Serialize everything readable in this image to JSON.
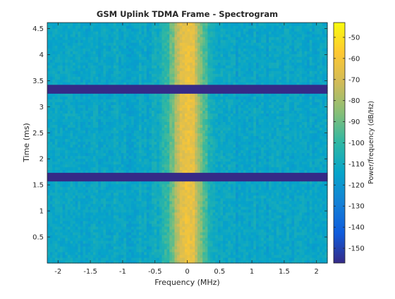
{
  "chart_data": {
    "type": "heatmap",
    "title": "GSM Uplink TDMA Frame - Spectrogram",
    "xlabel": "Frequency (MHz)",
    "ylabel": "Time (ms)",
    "xlim": [
      -2.167,
      2.167
    ],
    "ylim": [
      0,
      4.615
    ],
    "x_ticks": [
      -2,
      -1.5,
      -1,
      -0.5,
      0,
      0.5,
      1,
      1.5,
      2
    ],
    "x_tick_labels": [
      "-2",
      "-1.5",
      "-1",
      "-0.5",
      "0",
      "0.5",
      "1",
      "1.5",
      "2"
    ],
    "y_ticks": [
      0.5,
      1,
      1.5,
      2,
      2.5,
      3,
      3.5,
      4,
      4.5
    ],
    "y_tick_labels": [
      "0.5",
      "1",
      "1.5",
      "2",
      "2.5",
      "3",
      "3.5",
      "4",
      "4.5"
    ],
    "colorbar": {
      "label": "Power/frequency (dB/Hz)",
      "range": [
        -157,
        -43
      ],
      "ticks": [
        -50,
        -60,
        -70,
        -80,
        -90,
        -100,
        -110,
        -120,
        -130,
        -140,
        -150
      ],
      "tick_labels": [
        "-50",
        "-60",
        "-70",
        "-80",
        "-90",
        "-100",
        "-110",
        "-120",
        "-130",
        "-140",
        "-150"
      ],
      "colormap": "parula"
    },
    "signal": {
      "center_frequency": 0,
      "occupied_bandwidth": 0.5,
      "peak_level": -62,
      "floor_level": -113
    },
    "guard_periods": [
      {
        "start": 1.57,
        "end": 1.73,
        "level": -157
      },
      {
        "start": 3.26,
        "end": 3.42,
        "level": -157
      }
    ],
    "grid": false
  },
  "colors": {
    "background": "#ffffff",
    "axes": "#262626"
  }
}
